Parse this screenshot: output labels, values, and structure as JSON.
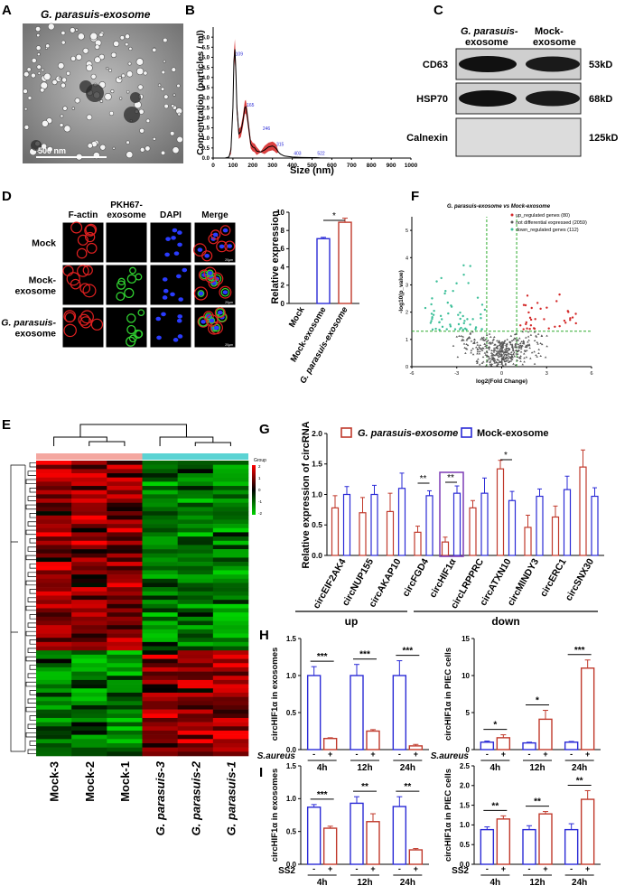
{
  "panels": {
    "A": {
      "letter": "A",
      "title": "G. parasuis-exosome",
      "scale": "500 nm"
    },
    "B": {
      "letter": "B"
    },
    "C": {
      "letter": "C",
      "col1": [
        "G. parasuis-",
        "exosome"
      ],
      "col2": [
        "Mock-",
        "exosome"
      ],
      "rows": [
        {
          "label": "CD63",
          "kd": "53kD"
        },
        {
          "label": "HSP70",
          "kd": "68kD"
        },
        {
          "label": "Calnexin",
          "kd": "125kD"
        }
      ]
    },
    "D": {
      "letter": "D",
      "cols": [
        "F-actin",
        "PKH67-\nexosome",
        "DAPI",
        "Merge"
      ],
      "rows": [
        "Mock",
        "Mock-\nexosome",
        "G. parasuis-\nexosome"
      ],
      "scalebar": "20μm"
    },
    "E": {
      "letter": "E",
      "legend_title": "Group",
      "legend_ticks": [
        "2",
        "1",
        "0",
        "-1",
        "-2"
      ],
      "samples": [
        "Mock-3",
        "Mock-2",
        "Mock-1",
        "G. parasuis-3",
        "G. parasuis-2",
        "G. parasuis-1"
      ]
    },
    "F": {
      "letter": "F"
    },
    "G": {
      "letter": "G",
      "group_up": "up",
      "group_down": "down"
    },
    "H": {
      "letter": "H",
      "treatment": "S.aureus"
    },
    "I": {
      "letter": "I",
      "treatment": "SS2"
    }
  },
  "chart_data": [
    {
      "id": "B",
      "type": "line",
      "xlabel": "Size (nm)",
      "ylabel": "Concentration (particles / ml)",
      "xlim": [
        0,
        1000
      ],
      "ylim": [
        0,
        6.5
      ],
      "xticks": [
        "0",
        "100",
        "200",
        "300",
        "400",
        "500",
        "600",
        "700",
        "800",
        "900",
        "1000"
      ],
      "yticks": [
        "0.0",
        "0.5",
        "1.0",
        "1.5",
        "2.0",
        "2.5",
        "3.0",
        "3.5",
        "4.0",
        "4.5",
        "5.0",
        "5.5",
        "6.0"
      ],
      "x": [
        0,
        60,
        80,
        90,
        100,
        105,
        110,
        115,
        120,
        130,
        140,
        150,
        160,
        165,
        170,
        180,
        190,
        200,
        210,
        220,
        240,
        260,
        280,
        300,
        310,
        320,
        330,
        340,
        360,
        400,
        450,
        500,
        520,
        540,
        600,
        700,
        800,
        900,
        1000
      ],
      "y": [
        0,
        0,
        0.05,
        0.4,
        2.5,
        4.8,
        5.4,
        4.3,
        2.5,
        1.2,
        1.3,
        1.8,
        2.5,
        2.55,
        2.3,
        1.5,
        0.7,
        0.55,
        0.5,
        0.35,
        0.3,
        0.4,
        0.55,
        0.6,
        0.55,
        0.45,
        0.3,
        0.2,
        0.1,
        0.05,
        0.03,
        0.02,
        0.02,
        0.01,
        0,
        0,
        0,
        0,
        0
      ],
      "peak_labels": [
        {
          "x": 108,
          "y": 5.05,
          "label": "109"
        },
        {
          "x": 165,
          "y": 2.5,
          "label": "165"
        },
        {
          "x": 246,
          "y": 1.35,
          "label": "246"
        },
        {
          "x": 315,
          "y": 0.55,
          "label": "315"
        },
        {
          "x": 403,
          "y": 0.12,
          "label": "403"
        },
        {
          "x": 522,
          "y": 0.12,
          "label": "522"
        }
      ]
    },
    {
      "id": "D",
      "type": "bar",
      "categories": [
        "Mock",
        "Mock-exosome",
        "G. parasuis-exosome"
      ],
      "values": [
        0,
        7.1,
        8.9
      ],
      "errors": [
        0,
        0.15,
        0.45
      ],
      "ylabel": "Relative expression",
      "ylim": [
        0,
        10
      ],
      "yticks": [
        "0",
        "2",
        "4",
        "6",
        "8",
        "10"
      ],
      "significance": "*"
    },
    {
      "id": "F",
      "type": "scatter",
      "title": "G. parasuis-exosome  vs  Mock-exosome",
      "xlabel": "log2(Fold Change)",
      "ylabel": "-log10(p_value)",
      "xlim": [
        -6,
        6
      ],
      "ylim": [
        0,
        5.5
      ],
      "xticks": [
        "-6",
        "-3",
        "0",
        "3",
        "6"
      ],
      "yticks": [
        "0",
        "1",
        "2",
        "3",
        "4",
        "5"
      ],
      "legend": [
        "up_regulated genes (80)",
        "not differential expressed (2059)",
        "down_regulated genes (112)"
      ],
      "colors": [
        "#d42a2a",
        "#555555",
        "#3cbf99"
      ]
    },
    {
      "id": "G",
      "type": "bar",
      "ylabel": "Relative expression of circRNA",
      "ylim": [
        0,
        2.0
      ],
      "yticks": [
        "0.0",
        "0.5",
        "1.0",
        "1.5",
        "2.0"
      ],
      "categories": [
        "circEIF2AK4",
        "circNUP155",
        "circAKAP10",
        "circFGD4",
        "circHIF1α",
        "circLRPPRC",
        "circATXN10",
        "circMINDY3",
        "circERC1",
        "circSNX30"
      ],
      "series": [
        {
          "name": "G. parasuis-exosome",
          "values": [
            0.78,
            0.7,
            0.72,
            0.38,
            0.22,
            0.78,
            1.42,
            0.46,
            0.63,
            1.45
          ],
          "errors": [
            0.2,
            0.25,
            0.3,
            0.1,
            0.08,
            0.12,
            0.14,
            0.2,
            0.18,
            0.28
          ]
        },
        {
          "name": "Mock-exosome",
          "values": [
            1.0,
            1.0,
            1.1,
            0.98,
            1.02,
            1.02,
            0.9,
            0.97,
            1.08,
            0.97
          ],
          "errors": [
            0.13,
            0.15,
            0.25,
            0.08,
            0.12,
            0.25,
            0.15,
            0.12,
            0.22,
            0.14
          ]
        }
      ],
      "significance": [
        {
          "pair": [
            3,
            4
          ],
          "label": "**"
        },
        {
          "pair": [
            4,
            4
          ],
          "label": "**"
        },
        {
          "pair": [
            6,
            6
          ],
          "label": "*"
        }
      ]
    },
    {
      "id": "H1",
      "type": "bar",
      "ylabel": "circHIF1α in exosomes",
      "ylim": [
        0,
        1.5
      ],
      "yticks": [
        "0.0",
        "0.5",
        "1.0",
        "1.5"
      ],
      "categories": [
        "4h",
        "12h",
        "24h"
      ],
      "treatment": [
        "-",
        "+"
      ],
      "series": [
        {
          "name": "-",
          "values": [
            1.0,
            1.0,
            1.0
          ],
          "errors": [
            0.12,
            0.15,
            0.2
          ]
        },
        {
          "name": "+",
          "values": [
            0.15,
            0.25,
            0.05
          ],
          "errors": [
            0.01,
            0.02,
            0.02
          ]
        }
      ],
      "significance": [
        "***",
        "***",
        "***"
      ]
    },
    {
      "id": "H2",
      "type": "bar",
      "ylabel": "circHIF1α in PIEC cells",
      "ylim": [
        0,
        15
      ],
      "yticks": [
        "0",
        "5",
        "10",
        "15"
      ],
      "categories": [
        "4h",
        "12h",
        "24h"
      ],
      "treatment": [
        "-",
        "+"
      ],
      "series": [
        {
          "name": "-",
          "values": [
            1.0,
            0.9,
            1.0
          ],
          "errors": [
            0.15,
            0.1,
            0.1
          ]
        },
        {
          "name": "+",
          "values": [
            1.6,
            4.1,
            11.0
          ],
          "errors": [
            0.4,
            1.2,
            1.1
          ]
        }
      ],
      "significance": [
        "*",
        "*",
        "***"
      ]
    },
    {
      "id": "I1",
      "type": "bar",
      "ylabel": "circHIF1α in exosomes",
      "ylim": [
        0,
        1.5
      ],
      "yticks": [
        "0.0",
        "0.5",
        "1.0",
        "1.5"
      ],
      "categories": [
        "4h",
        "12h",
        "24h"
      ],
      "treatment": [
        "-",
        "+"
      ],
      "series": [
        {
          "name": "-",
          "values": [
            0.87,
            0.93,
            0.88
          ],
          "errors": [
            0.04,
            0.1,
            0.15
          ]
        },
        {
          "name": "+",
          "values": [
            0.55,
            0.65,
            0.22
          ],
          "errors": [
            0.03,
            0.12,
            0.02
          ]
        }
      ],
      "significance": [
        "***",
        "**",
        "**"
      ]
    },
    {
      "id": "I2",
      "type": "bar",
      "ylabel": "circHIF1α in PIEC cells",
      "ylim": [
        0,
        2.5
      ],
      "yticks": [
        "0.0",
        "0.5",
        "1.0",
        "1.5",
        "2.0",
        "2.5"
      ],
      "categories": [
        "4h",
        "12h",
        "24h"
      ],
      "treatment": [
        "-",
        "+"
      ],
      "series": [
        {
          "name": "-",
          "values": [
            0.88,
            0.88,
            0.88
          ],
          "errors": [
            0.07,
            0.1,
            0.15
          ]
        },
        {
          "name": "+",
          "values": [
            1.15,
            1.28,
            1.65
          ],
          "errors": [
            0.08,
            0.06,
            0.22
          ]
        }
      ],
      "significance": [
        "**",
        "**",
        "**"
      ]
    }
  ],
  "colors": {
    "red": "#c0392b",
    "blue": "#2a2ad6",
    "red_line": "#d41f1f",
    "heat_red": "#ff0000",
    "heat_green": "#00c000"
  }
}
